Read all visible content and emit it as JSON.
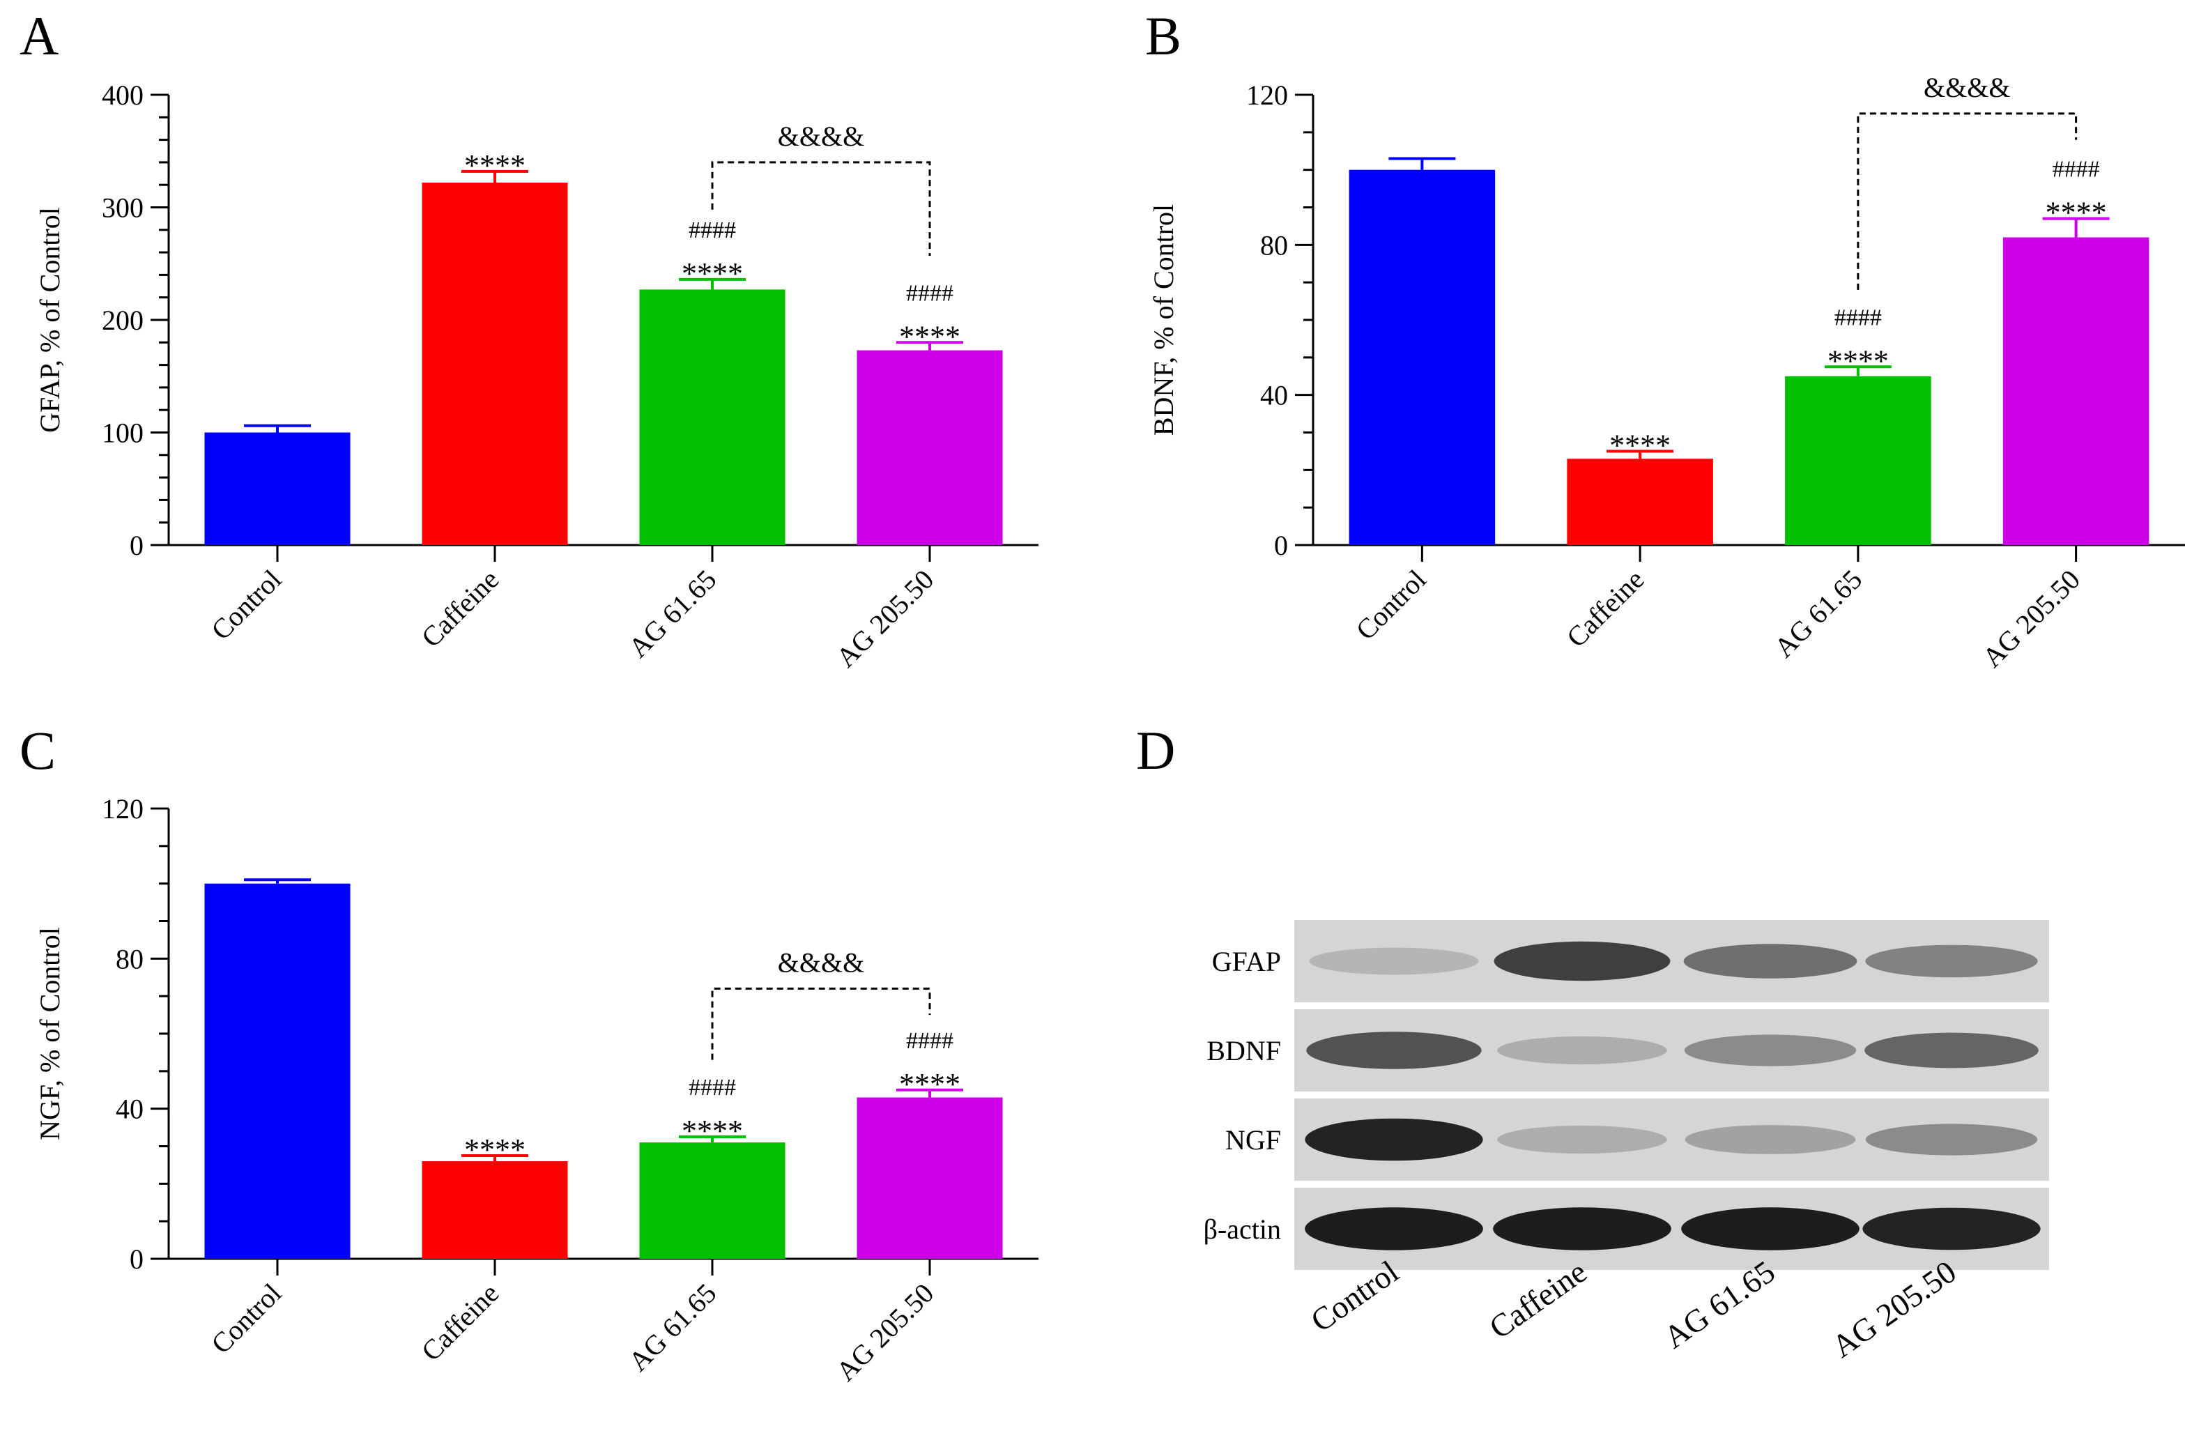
{
  "figure": {
    "colors": [
      "#0000ff",
      "#ff0000",
      "#00c000",
      "#cc00e6"
    ],
    "error_color_offset": "same-as-bar"
  },
  "chart_data": [
    {
      "panel": "A",
      "type": "bar",
      "ylabel": "GFAP, % of Control",
      "categories": [
        "Control",
        "Caffeine",
        "AG 61.65",
        "AG 205.50"
      ],
      "values": [
        100,
        322,
        227,
        173
      ],
      "errors": [
        6,
        10,
        9,
        7
      ],
      "ylim": [
        0,
        400
      ],
      "yticks": [
        0,
        100,
        200,
        300,
        400
      ],
      "annotations": [
        {
          "bar": 1,
          "lines": [
            "****"
          ]
        },
        {
          "bar": 2,
          "lines": [
            "####",
            "****"
          ]
        },
        {
          "bar": 3,
          "lines": [
            "####",
            "****"
          ]
        }
      ],
      "bracket": {
        "from": 2,
        "to": 3,
        "label": "&&&&",
        "level": 340,
        "left_end": 298,
        "right_end": 257
      }
    },
    {
      "panel": "B",
      "type": "bar",
      "ylabel": "BDNF, % of Control",
      "categories": [
        "Control",
        "Caffeine",
        "AG 61.65",
        "AG 205.50"
      ],
      "values": [
        100,
        23,
        45,
        82
      ],
      "errors": [
        3,
        2,
        2.5,
        5
      ],
      "ylim": [
        0,
        120
      ],
      "yticks": [
        0,
        40,
        80,
        120
      ],
      "annotations": [
        {
          "bar": 1,
          "lines": [
            "****"
          ]
        },
        {
          "bar": 2,
          "lines": [
            "####",
            "****"
          ]
        },
        {
          "bar": 3,
          "lines": [
            "####",
            "****"
          ]
        }
      ],
      "bracket": {
        "from": 2,
        "to": 3,
        "label": "&&&&",
        "level": 115,
        "left_end": 68,
        "right_end": 108
      }
    },
    {
      "panel": "C",
      "type": "bar",
      "ylabel": "NGF, % of Control",
      "categories": [
        "Control",
        "Caffeine",
        "AG 61.65",
        "AG 205.50"
      ],
      "values": [
        100,
        26,
        31,
        43
      ],
      "errors": [
        1,
        1.5,
        1.5,
        2
      ],
      "ylim": [
        0,
        120
      ],
      "yticks": [
        0,
        40,
        80,
        120
      ],
      "annotations": [
        {
          "bar": 1,
          "lines": [
            "****"
          ]
        },
        {
          "bar": 2,
          "lines": [
            "####",
            "****"
          ]
        },
        {
          "bar": 3,
          "lines": [
            "####",
            "****"
          ]
        }
      ],
      "bracket": {
        "from": 2,
        "to": 3,
        "label": "&&&&",
        "level": 72,
        "left_end": 53,
        "right_end": 65
      }
    }
  ],
  "blot": {
    "panel": "D",
    "rows": [
      "GFAP",
      "BDNF",
      "NGF",
      "β-actin"
    ],
    "lanes": [
      "Control",
      "Caffeine",
      "AG 61.65",
      "AG 205.50"
    ],
    "intensity": [
      [
        0.18,
        0.8,
        0.55,
        0.45
      ],
      [
        0.7,
        0.22,
        0.4,
        0.6
      ],
      [
        0.95,
        0.22,
        0.28,
        0.4
      ],
      [
        0.98,
        0.98,
        0.98,
        0.95
      ]
    ]
  }
}
